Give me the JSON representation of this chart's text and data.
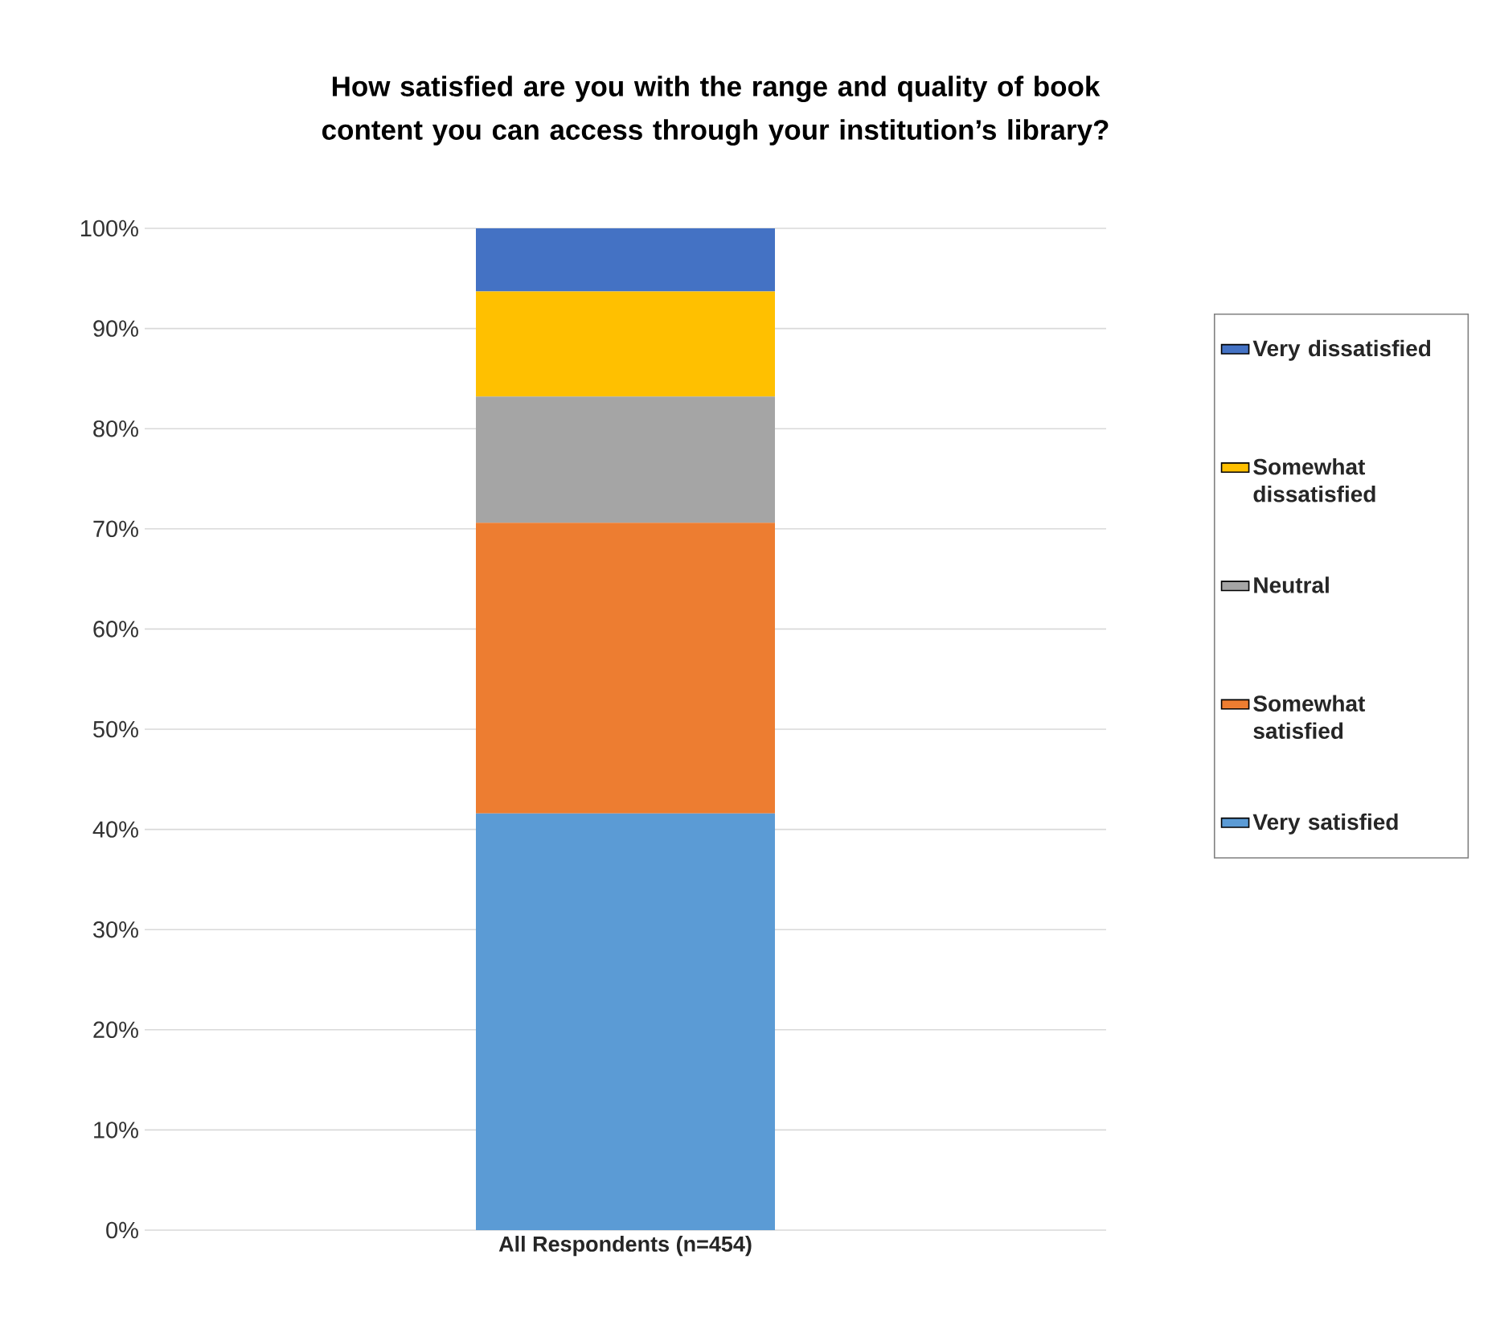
{
  "chart_data": {
    "type": "bar",
    "stacked": true,
    "title": "How satisfied are you with the range and quality of book content you can access through your institution’s library?",
    "categories": [
      "All Respondents (n=454)"
    ],
    "series": [
      {
        "name": "Very satisfied",
        "color": "#5b9bd5",
        "values": [
          41.6
        ]
      },
      {
        "name": "Somewhat satisfied",
        "color": "#ed7d31",
        "values": [
          29.0
        ]
      },
      {
        "name": "Neutral",
        "color": "#a5a5a5",
        "values": [
          12.6
        ]
      },
      {
        "name": "Somewhat dissatisfied",
        "color": "#ffc000",
        "values": [
          10.5
        ]
      },
      {
        "name": "Very dissatisfied",
        "color": "#4472c4",
        "values": [
          6.3
        ]
      }
    ],
    "ylim": [
      0,
      100
    ],
    "yticks": [
      {
        "value": 0,
        "label": "0%"
      },
      {
        "value": 10,
        "label": "10%"
      },
      {
        "value": 20,
        "label": "20%"
      },
      {
        "value": 30,
        "label": "30%"
      },
      {
        "value": 40,
        "label": "40%"
      },
      {
        "value": 50,
        "label": "50%"
      },
      {
        "value": 60,
        "label": "60%"
      },
      {
        "value": 70,
        "label": "70%"
      },
      {
        "value": 80,
        "label": "80%"
      },
      {
        "value": 90,
        "label": "90%"
      },
      {
        "value": 100,
        "label": "100%"
      }
    ],
    "grid": "y",
    "legend": "right"
  }
}
